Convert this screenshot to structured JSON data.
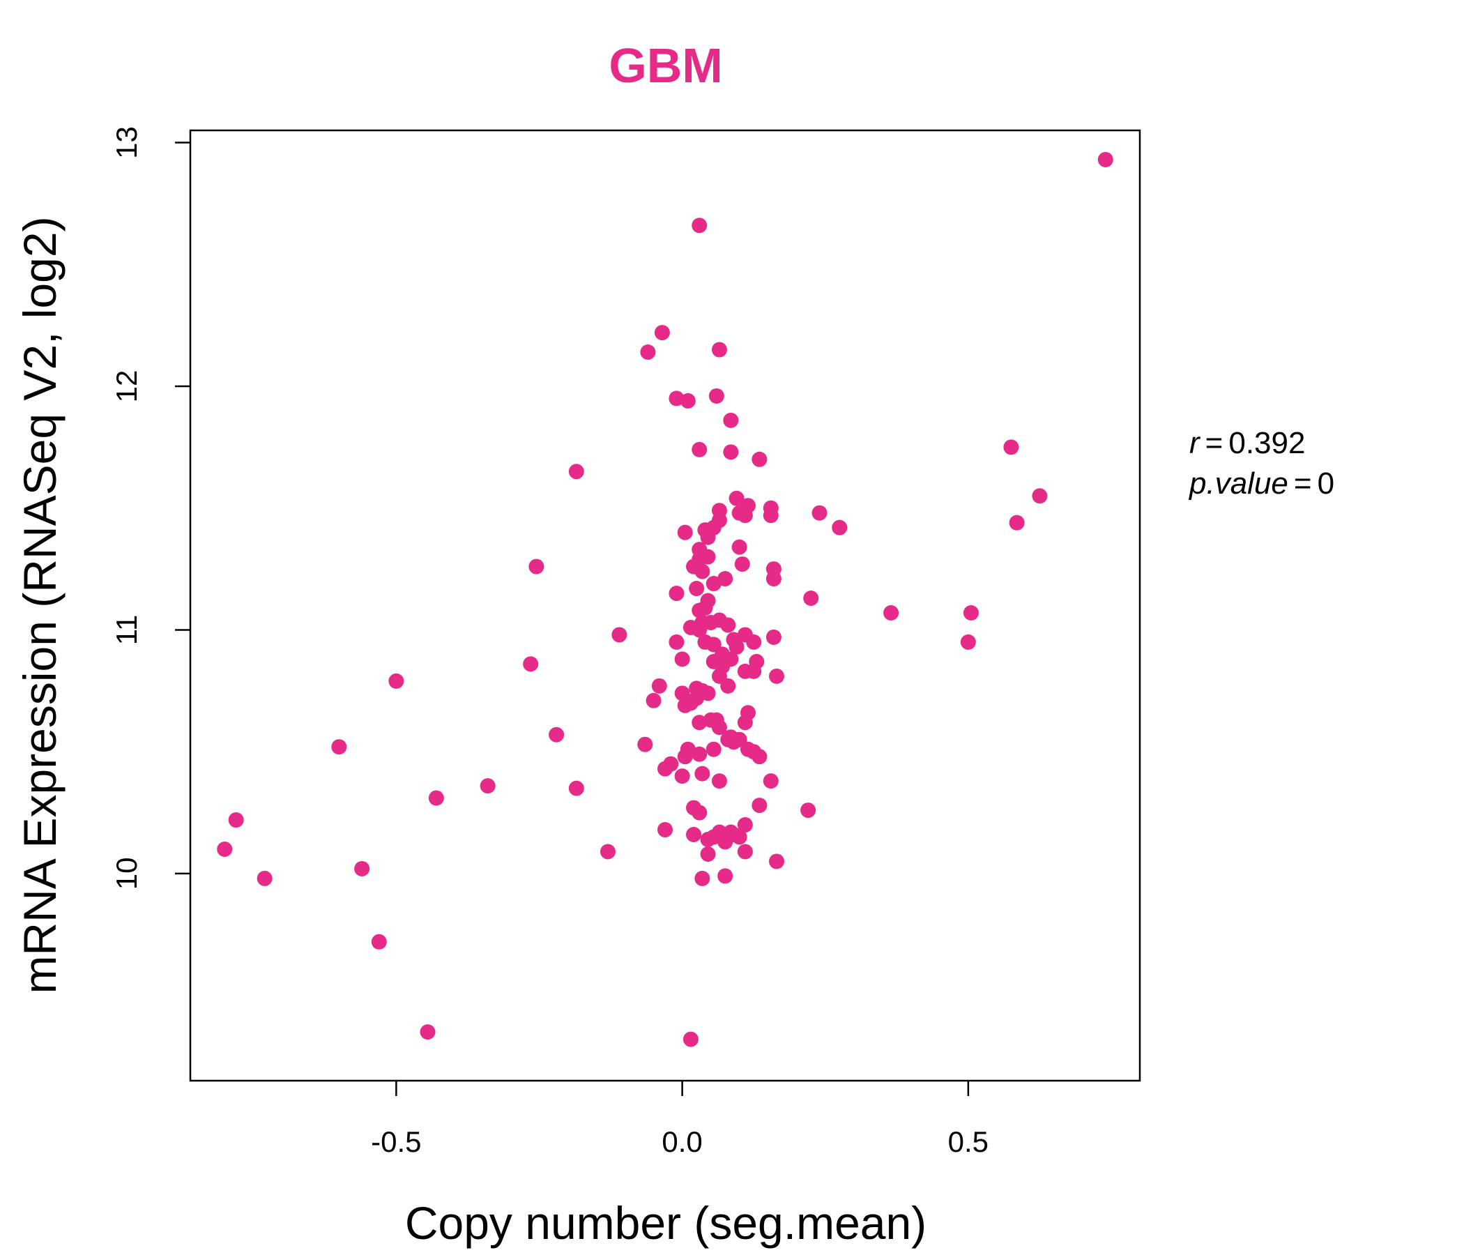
{
  "chart_data": {
    "type": "scatter",
    "title": "GBM",
    "xlabel": "Copy number (seg.mean)",
    "ylabel": "mRNA Expression (RNASeq V2, log2)",
    "xlim": [
      -0.86,
      0.8
    ],
    "ylim": [
      9.15,
      13.05
    ],
    "xticks": [
      -0.5,
      0.0,
      0.5
    ],
    "xtick_labels": [
      "-0.5",
      "0.0",
      "0.5"
    ],
    "yticks": [
      10,
      11,
      12,
      13
    ],
    "ytick_labels": [
      "10",
      "11",
      "12",
      "13"
    ],
    "grid": false,
    "annotations": {
      "r_label": "r",
      "r_value": "0.392",
      "p_label": "p.value",
      "p_value": "0",
      "eq": "="
    },
    "colors": {
      "points": "#E52A87",
      "title": "#E52A87",
      "axis": "#000000"
    },
    "points": [
      [
        0.74,
        12.93
      ],
      [
        0.03,
        12.66
      ],
      [
        -0.035,
        12.22
      ],
      [
        -0.06,
        12.14
      ],
      [
        0.065,
        12.15
      ],
      [
        -0.01,
        11.95
      ],
      [
        0.01,
        11.94
      ],
      [
        0.06,
        11.96
      ],
      [
        0.085,
        11.86
      ],
      [
        0.03,
        11.74
      ],
      [
        0.085,
        11.73
      ],
      [
        0.135,
        11.7
      ],
      [
        -0.185,
        11.65
      ],
      [
        0.575,
        11.75
      ],
      [
        0.625,
        11.55
      ],
      [
        0.585,
        11.44
      ],
      [
        0.24,
        11.48
      ],
      [
        0.275,
        11.42
      ],
      [
        0.095,
        11.54
      ],
      [
        0.115,
        11.51
      ],
      [
        0.155,
        11.5
      ],
      [
        0.065,
        11.49
      ],
      [
        0.1,
        11.48
      ],
      [
        0.11,
        11.47
      ],
      [
        0.155,
        11.47
      ],
      [
        0.065,
        11.45
      ],
      [
        0.055,
        11.42
      ],
      [
        0.04,
        11.41
      ],
      [
        0.005,
        11.4
      ],
      [
        0.045,
        11.38
      ],
      [
        0.1,
        11.34
      ],
      [
        0.03,
        11.33
      ],
      [
        0.045,
        11.3
      ],
      [
        0.03,
        11.29
      ],
      [
        -0.255,
        11.26
      ],
      [
        0.105,
        11.27
      ],
      [
        0.02,
        11.26
      ],
      [
        0.035,
        11.24
      ],
      [
        0.16,
        11.25
      ],
      [
        0.075,
        11.21
      ],
      [
        0.16,
        11.21
      ],
      [
        0.055,
        11.19
      ],
      [
        0.025,
        11.17
      ],
      [
        -0.01,
        11.15
      ],
      [
        0.225,
        11.13
      ],
      [
        0.045,
        11.12
      ],
      [
        0.04,
        11.09
      ],
      [
        0.03,
        11.08
      ],
      [
        0.365,
        11.07
      ],
      [
        0.505,
        11.07
      ],
      [
        0.065,
        11.04
      ],
      [
        0.05,
        11.03
      ],
      [
        0.035,
        11.03
      ],
      [
        0.08,
        11.02
      ],
      [
        0.015,
        11.01
      ],
      [
        0.03,
        11.0
      ],
      [
        0.11,
        10.98
      ],
      [
        -0.11,
        10.98
      ],
      [
        0.16,
        10.97
      ],
      [
        0.09,
        10.96
      ],
      [
        -0.01,
        10.95
      ],
      [
        0.04,
        10.95
      ],
      [
        0.125,
        10.95
      ],
      [
        0.5,
        10.95
      ],
      [
        0.055,
        10.94
      ],
      [
        0.095,
        10.93
      ],
      [
        0.07,
        10.9
      ],
      [
        0.0,
        10.88
      ],
      [
        0.085,
        10.88
      ],
      [
        0.055,
        10.87
      ],
      [
        0.13,
        10.87
      ],
      [
        -0.265,
        10.86
      ],
      [
        0.07,
        10.85
      ],
      [
        0.11,
        10.83
      ],
      [
        0.125,
        10.83
      ],
      [
        0.065,
        10.81
      ],
      [
        0.165,
        10.81
      ],
      [
        -0.5,
        10.79
      ],
      [
        0.08,
        10.77
      ],
      [
        -0.04,
        10.77
      ],
      [
        0.025,
        10.76
      ],
      [
        0.035,
        10.75
      ],
      [
        0.0,
        10.74
      ],
      [
        0.045,
        10.74
      ],
      [
        0.025,
        10.72
      ],
      [
        -0.05,
        10.71
      ],
      [
        0.015,
        10.7
      ],
      [
        0.005,
        10.69
      ],
      [
        0.115,
        10.66
      ],
      [
        0.05,
        10.63
      ],
      [
        0.06,
        10.63
      ],
      [
        0.03,
        10.62
      ],
      [
        0.11,
        10.62
      ],
      [
        0.065,
        10.6
      ],
      [
        -0.22,
        10.57
      ],
      [
        0.085,
        10.56
      ],
      [
        0.08,
        10.55
      ],
      [
        0.1,
        10.55
      ],
      [
        0.09,
        10.54
      ],
      [
        -0.065,
        10.53
      ],
      [
        -0.6,
        10.52
      ],
      [
        0.115,
        10.51
      ],
      [
        0.055,
        10.51
      ],
      [
        0.01,
        10.51
      ],
      [
        0.125,
        10.5
      ],
      [
        0.03,
        10.49
      ],
      [
        0.005,
        10.48
      ],
      [
        0.135,
        10.48
      ],
      [
        -0.02,
        10.45
      ],
      [
        -0.03,
        10.43
      ],
      [
        0.035,
        10.41
      ],
      [
        0.0,
        10.4
      ],
      [
        0.065,
        10.38
      ],
      [
        0.155,
        10.38
      ],
      [
        -0.34,
        10.36
      ],
      [
        -0.185,
        10.35
      ],
      [
        -0.43,
        10.31
      ],
      [
        0.135,
        10.28
      ],
      [
        0.02,
        10.27
      ],
      [
        0.03,
        10.25
      ],
      [
        0.22,
        10.26
      ],
      [
        -0.78,
        10.22
      ],
      [
        0.11,
        10.2
      ],
      [
        -0.03,
        10.18
      ],
      [
        0.065,
        10.17
      ],
      [
        0.085,
        10.17
      ],
      [
        0.02,
        10.16
      ],
      [
        0.055,
        10.15
      ],
      [
        0.1,
        10.15
      ],
      [
        0.09,
        10.16
      ],
      [
        0.045,
        10.14
      ],
      [
        0.075,
        10.13
      ],
      [
        -0.8,
        10.1
      ],
      [
        -0.13,
        10.09
      ],
      [
        0.11,
        10.09
      ],
      [
        0.045,
        10.08
      ],
      [
        0.165,
        10.05
      ],
      [
        -0.56,
        10.02
      ],
      [
        -0.73,
        9.98
      ],
      [
        0.035,
        9.98
      ],
      [
        0.075,
        9.99
      ],
      [
        -0.53,
        9.72
      ],
      [
        -0.445,
        9.35
      ],
      [
        0.015,
        9.32
      ]
    ]
  }
}
